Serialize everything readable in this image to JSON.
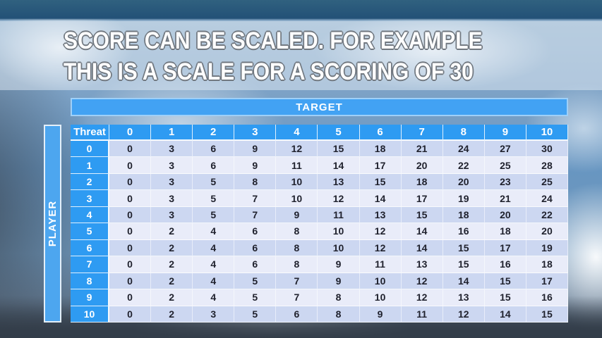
{
  "slide": {
    "title_line1": "SCORE CAN BE SCALED. FOR EXAMPLE",
    "title_line2": "THIS IS A SCALE FOR A SCORING OF 30"
  },
  "table": {
    "target_label": "TARGET",
    "player_label": "PLAYER",
    "threat_label": "Threat",
    "columns": [
      "0",
      "1",
      "2",
      "3",
      "4",
      "5",
      "6",
      "7",
      "8",
      "9",
      "10"
    ],
    "rows": [
      {
        "threat": "0",
        "values": [
          0,
          3,
          6,
          9,
          12,
          15,
          18,
          21,
          24,
          27,
          30
        ]
      },
      {
        "threat": "1",
        "values": [
          0,
          3,
          6,
          9,
          11,
          14,
          17,
          20,
          22,
          25,
          28
        ]
      },
      {
        "threat": "2",
        "values": [
          0,
          3,
          5,
          8,
          10,
          13,
          15,
          18,
          20,
          23,
          25
        ]
      },
      {
        "threat": "3",
        "values": [
          0,
          3,
          5,
          7,
          10,
          12,
          14,
          17,
          19,
          21,
          24
        ]
      },
      {
        "threat": "4",
        "values": [
          0,
          3,
          5,
          7,
          9,
          11,
          13,
          15,
          18,
          20,
          22
        ]
      },
      {
        "threat": "5",
        "values": [
          0,
          2,
          4,
          6,
          8,
          10,
          12,
          14,
          16,
          18,
          20
        ]
      },
      {
        "threat": "6",
        "values": [
          0,
          2,
          4,
          6,
          8,
          10,
          12,
          14,
          15,
          17,
          19
        ]
      },
      {
        "threat": "7",
        "values": [
          0,
          2,
          4,
          6,
          8,
          9,
          11,
          13,
          15,
          16,
          18
        ]
      },
      {
        "threat": "8",
        "values": [
          0,
          2,
          4,
          5,
          7,
          9,
          10,
          12,
          14,
          15,
          17
        ]
      },
      {
        "threat": "9",
        "values": [
          0,
          2,
          4,
          5,
          7,
          8,
          10,
          12,
          13,
          15,
          16
        ]
      },
      {
        "threat": "10",
        "values": [
          0,
          2,
          3,
          5,
          6,
          8,
          9,
          11,
          12,
          14,
          15
        ]
      }
    ]
  },
  "colors": {
    "header_blue": "#2E9BF2",
    "target_bar_blue": "#42A2F3",
    "player_bar_blue": "#4DA6EF",
    "row_dark": "#CCD7F1",
    "row_light": "#E9ECF9",
    "cell_text": "#20222E",
    "title_text": "#FFFFFF",
    "title_outline": "#70777F"
  }
}
